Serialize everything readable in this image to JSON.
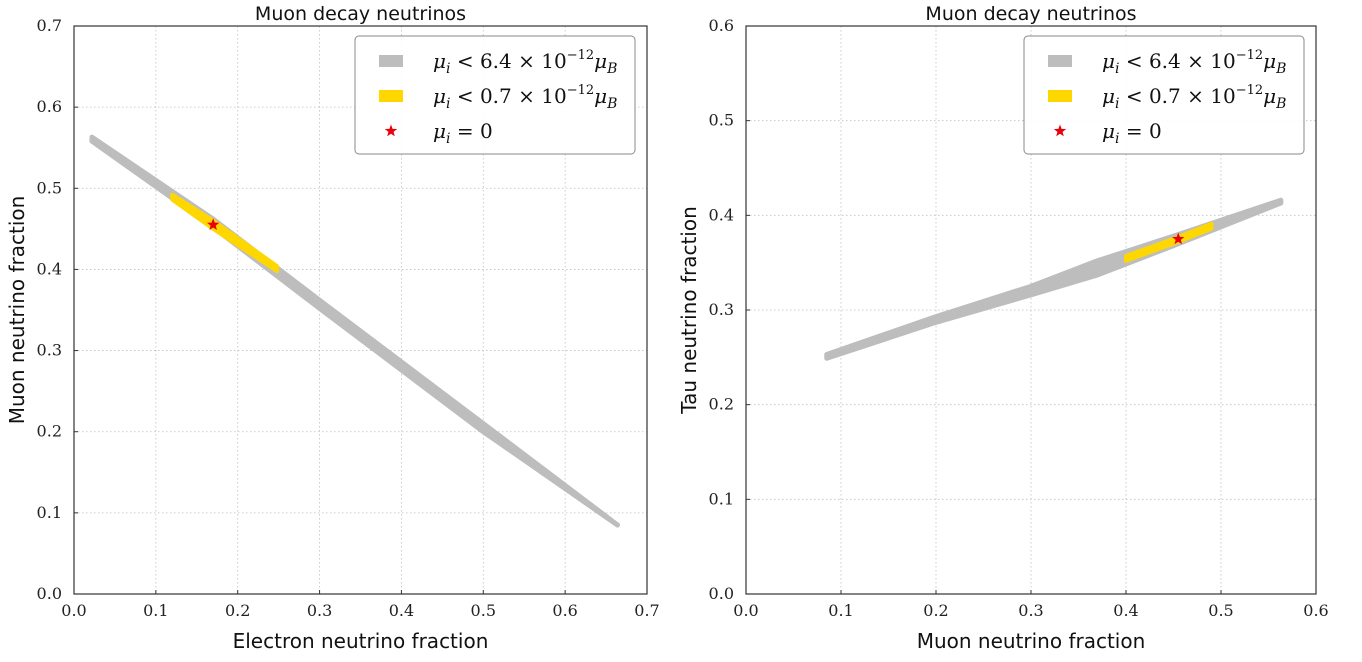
{
  "colors": {
    "band_wide": "#bdbdbd",
    "band_narrow": "#ffd700",
    "star": "#e8000b",
    "frame": "#333333"
  },
  "chart_data": [
    {
      "type": "area",
      "title": "Muon decay neutrinos",
      "xlabel": "Electron neutrino fraction",
      "ylabel": "Muon neutrino fraction",
      "xlim": [
        0.0,
        0.7
      ],
      "ylim": [
        0.0,
        0.7
      ],
      "xticks": [
        "0.0",
        "0.1",
        "0.2",
        "0.3",
        "0.4",
        "0.5",
        "0.6",
        "0.7"
      ],
      "yticks": [
        "0.0",
        "0.1",
        "0.2",
        "0.3",
        "0.4",
        "0.5",
        "0.6",
        "0.7"
      ],
      "grid": true,
      "legend_position": "top-right",
      "series": [
        {
          "name": "μ_i < 6.4 × 10^-12 μ_B",
          "legend_main": "μ",
          "legend_sub": "i",
          "legend_rest": " < 6.4 × 10",
          "legend_sup": "−12",
          "legend_end": "μ",
          "legend_end_sub": "B",
          "kind": "band",
          "upper": [
            [
              0.022,
              0.563
            ],
            [
              0.17,
              0.462
            ],
            [
              0.3,
              0.362
            ],
            [
              0.5,
              0.21
            ],
            [
              0.664,
              0.085
            ]
          ],
          "lower": [
            [
              0.664,
              0.085
            ],
            [
              0.5,
              0.2
            ],
            [
              0.3,
              0.352
            ],
            [
              0.17,
              0.452
            ],
            [
              0.022,
              0.558
            ]
          ]
        },
        {
          "name": "μ_i < 0.7 × 10^-12 μ_B",
          "legend_main": "μ",
          "legend_sub": "i",
          "legend_rest": " < 0.7 × 10",
          "legend_sup": "−12",
          "legend_end": "μ",
          "legend_end_sub": "B",
          "kind": "band",
          "upper": [
            [
              0.12,
              0.492
            ],
            [
              0.17,
              0.46
            ],
            [
              0.248,
              0.404
            ]
          ],
          "lower": [
            [
              0.248,
              0.398
            ],
            [
              0.17,
              0.45
            ],
            [
              0.12,
              0.486
            ]
          ]
        },
        {
          "name": "μ_i = 0",
          "legend_main": "μ",
          "legend_sub": "i",
          "legend_rest": " = 0",
          "kind": "point",
          "x": 0.17,
          "y": 0.455
        }
      ]
    },
    {
      "type": "area",
      "title": "Muon decay neutrinos",
      "xlabel": "Muon neutrino fraction",
      "ylabel": "Tau neutrino fraction",
      "xlim": [
        0.0,
        0.6
      ],
      "ylim": [
        0.0,
        0.6
      ],
      "xticks": [
        "0.0",
        "0.1",
        "0.2",
        "0.3",
        "0.4",
        "0.5",
        "0.6"
      ],
      "yticks": [
        "0.0",
        "0.1",
        "0.2",
        "0.3",
        "0.4",
        "0.5",
        "0.6"
      ],
      "grid": true,
      "legend_position": "top-right",
      "series": [
        {
          "name": "μ_i < 6.4 × 10^-12 μ_B",
          "legend_main": "μ",
          "legend_sub": "i",
          "legend_rest": " < 6.4 × 10",
          "legend_sup": "−12",
          "legend_end": "μ",
          "legend_end_sub": "B",
          "kind": "band",
          "upper": [
            [
              0.085,
              0.253
            ],
            [
              0.2,
              0.293
            ],
            [
              0.3,
              0.325
            ],
            [
              0.37,
              0.352
            ],
            [
              0.45,
              0.378
            ],
            [
              0.563,
              0.416
            ]
          ],
          "lower": [
            [
              0.563,
              0.413
            ],
            [
              0.45,
              0.368
            ],
            [
              0.37,
              0.337
            ],
            [
              0.3,
              0.316
            ],
            [
              0.2,
              0.287
            ],
            [
              0.085,
              0.249
            ]
          ]
        },
        {
          "name": "μ_i < 0.7 × 10^-12 μ_B",
          "legend_main": "μ",
          "legend_sub": "i",
          "legend_rest": " < 0.7 × 10",
          "legend_sup": "−12",
          "legend_end": "μ",
          "legend_end_sub": "B",
          "kind": "band",
          "upper": [
            [
              0.4,
              0.357
            ],
            [
              0.455,
              0.377
            ],
            [
              0.49,
              0.391
            ]
          ],
          "lower": [
            [
              0.49,
              0.386
            ],
            [
              0.455,
              0.372
            ],
            [
              0.4,
              0.352
            ]
          ]
        },
        {
          "name": "μ_i = 0",
          "legend_main": "μ",
          "legend_sub": "i",
          "legend_rest": " = 0",
          "kind": "point",
          "x": 0.455,
          "y": 0.375
        }
      ]
    }
  ]
}
